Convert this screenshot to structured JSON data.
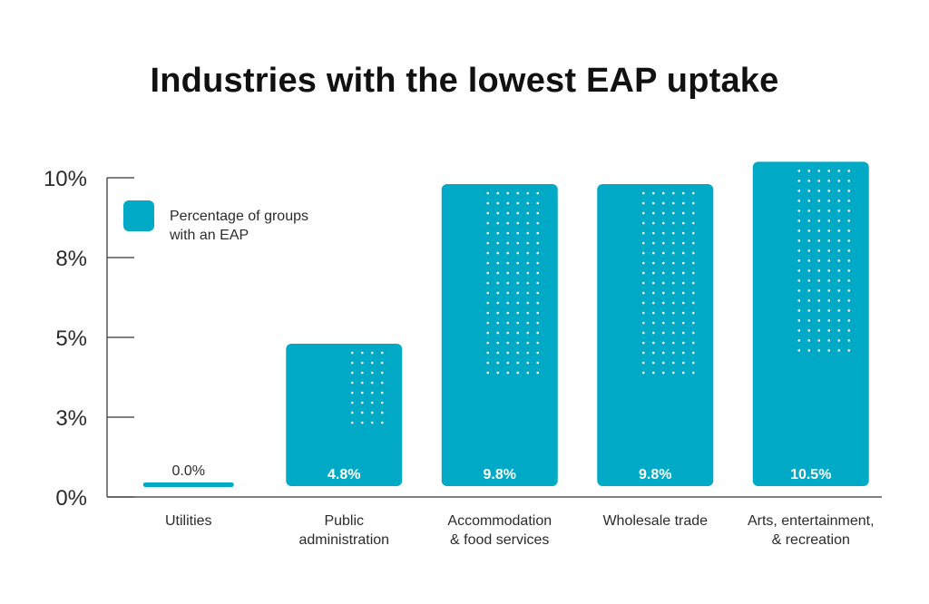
{
  "chart_data": {
    "type": "bar",
    "title": "Industries with the lowest EAP uptake",
    "categories": [
      [
        "Utilities"
      ],
      [
        "Public",
        "administration"
      ],
      [
        "Accommodation",
        "& food services"
      ],
      [
        "Wholesale trade"
      ],
      [
        "Arts, entertainment,",
        "& recreation"
      ]
    ],
    "values": [
      0.0,
      4.8,
      9.8,
      9.8,
      10.5
    ],
    "value_labels": [
      "0.0%",
      "4.8%",
      "9.8%",
      "9.8%",
      "10.5%"
    ],
    "series_name_lines": [
      "Percentage of groups",
      "with an EAP"
    ],
    "y_ticks": [
      {
        "value": 0,
        "label": "0%"
      },
      {
        "value": 2.5,
        "label": "3%"
      },
      {
        "value": 5,
        "label": "5%"
      },
      {
        "value": 7.5,
        "label": "8%"
      },
      {
        "value": 10,
        "label": "10%"
      }
    ],
    "ylim": [
      0,
      10
    ],
    "xlabel": "",
    "ylabel": "",
    "legend_position": "top-left",
    "colors": {
      "bar": "#00A9C6",
      "dots": "#ffffff",
      "axis": "#555555",
      "text": "#2b2b2b"
    }
  }
}
